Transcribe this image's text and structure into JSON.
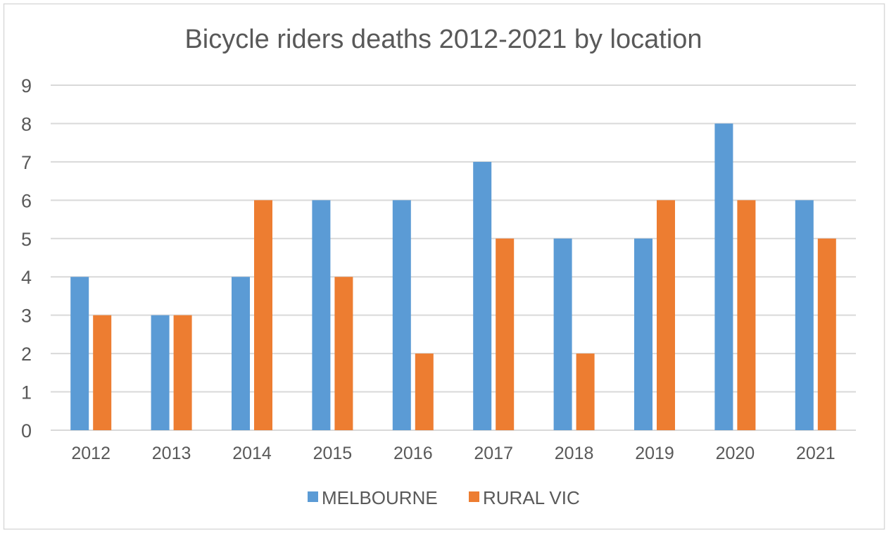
{
  "chart_data": {
    "type": "bar",
    "title": "Bicycle riders deaths 2012-2021 by location",
    "xlabel": "",
    "ylabel": "",
    "categories": [
      "2012",
      "2013",
      "2014",
      "2015",
      "2016",
      "2017",
      "2018",
      "2019",
      "2020",
      "2021"
    ],
    "series": [
      {
        "name": "MELBOURNE",
        "color": "#5B9BD5",
        "values": [
          4,
          3,
          4,
          6,
          6,
          7,
          5,
          5,
          8,
          6
        ]
      },
      {
        "name": "RURAL VIC",
        "color": "#ED7D31",
        "values": [
          3,
          3,
          6,
          4,
          2,
          5,
          2,
          6,
          6,
          5
        ]
      }
    ],
    "ylim": [
      0,
      9
    ],
    "yticks": [
      "0",
      "1",
      "2",
      "3",
      "4",
      "5",
      "6",
      "7",
      "8",
      "9"
    ],
    "grid": true,
    "legend_position": "bottom"
  }
}
